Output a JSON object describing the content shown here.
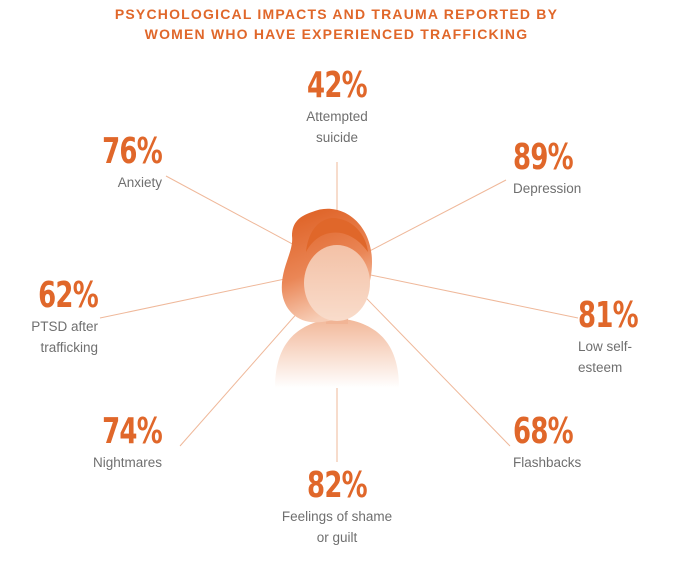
{
  "title_line1": "PSYCHOLOGICAL IMPACTS AND TRAUMA REPORTED BY",
  "title_line2": "WOMEN WHO HAVE EXPERIENCED TRAFFICKING",
  "colors": {
    "accent": "#e0672a",
    "label": "#6f6f6f",
    "line": "#efb89a"
  },
  "chart_data": {
    "type": "radial-infographic",
    "title": "PSYCHOLOGICAL IMPACTS AND TRAUMA REPORTED BY WOMEN WHO HAVE EXPERIENCED TRAFFICKING",
    "unit": "%",
    "items": [
      {
        "pct": "42%",
        "value": 42,
        "label_lines": [
          "Attempted",
          "suicide"
        ]
      },
      {
        "pct": "89%",
        "value": 89,
        "label_lines": [
          "Depression"
        ]
      },
      {
        "pct": "81%",
        "value": 81,
        "label_lines": [
          "Low self-",
          "esteem"
        ]
      },
      {
        "pct": "68%",
        "value": 68,
        "label_lines": [
          "Flashbacks"
        ]
      },
      {
        "pct": "82%",
        "value": 82,
        "label_lines": [
          "Feelings of shame",
          "or guilt"
        ]
      },
      {
        "pct": "74%",
        "value": 74,
        "label_lines": [
          "Nightmares"
        ]
      },
      {
        "pct": "62%",
        "value": 62,
        "label_lines": [
          "PTSD after",
          "trafficking"
        ]
      },
      {
        "pct": "76%",
        "value": 76,
        "label_lines": [
          "Anxiety"
        ]
      }
    ]
  }
}
